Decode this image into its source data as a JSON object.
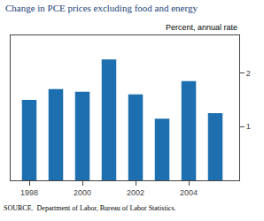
{
  "chart_data": {
    "type": "bar",
    "title": "Change in PCE prices excluding food and energy",
    "subtitle": "Percent, annual rate",
    "annotations": [
      "SOURCE.  Department of Labor, Bureau of Labor Statistics."
    ],
    "x": [
      1998,
      1999,
      2000,
      2001,
      2002,
      2003,
      2004,
      2005
    ],
    "values": [
      1.5,
      1.7,
      1.65,
      2.25,
      1.6,
      1.15,
      1.85,
      1.25
    ],
    "color": "#1D6FAF",
    "xlim": [
      1997.3,
      2005.9
    ],
    "xticks": [
      1998,
      2000,
      2002,
      2004
    ],
    "ylim": [
      0,
      2.7
    ],
    "yticks": [
      1,
      2
    ],
    "grid": false
  }
}
